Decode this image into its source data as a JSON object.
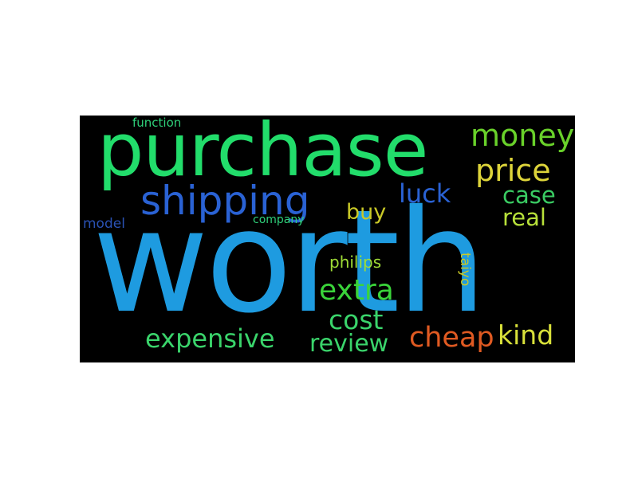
{
  "words": {
    "worth": {
      "text": "worth",
      "color": "#1e9be0"
    },
    "purchase": {
      "text": "purchase",
      "color": "#22dd6b"
    },
    "shipping": {
      "text": "shipping",
      "color": "#2a62d4"
    },
    "money": {
      "text": "money",
      "color": "#69d12a"
    },
    "price": {
      "text": "price",
      "color": "#ddd43a"
    },
    "luck": {
      "text": "luck",
      "color": "#2a62d4"
    },
    "case": {
      "text": "case",
      "color": "#3acc63"
    },
    "real": {
      "text": "real",
      "color": "#b7e03a"
    },
    "buy": {
      "text": "buy",
      "color": "#c9c927"
    },
    "model": {
      "text": "model",
      "color": "#2a52b5"
    },
    "company": {
      "text": "company",
      "color": "#2fd07a"
    },
    "function": {
      "text": "function",
      "color": "#2fd07a"
    },
    "philips": {
      "text": "philips",
      "color": "#9fdc36"
    },
    "taiyo": {
      "text": "taiyo",
      "color": "#c9c927"
    },
    "extra": {
      "text": "extra",
      "color": "#3ad43a"
    },
    "cost": {
      "text": "cost",
      "color": "#3ad46b"
    },
    "expensive": {
      "text": "expensive",
      "color": "#3ad46b"
    },
    "review": {
      "text": "review",
      "color": "#3ad46b"
    },
    "cheap": {
      "text": "cheap",
      "color": "#e05a22"
    },
    "kind": {
      "text": "kind",
      "color": "#d8e03a"
    }
  }
}
